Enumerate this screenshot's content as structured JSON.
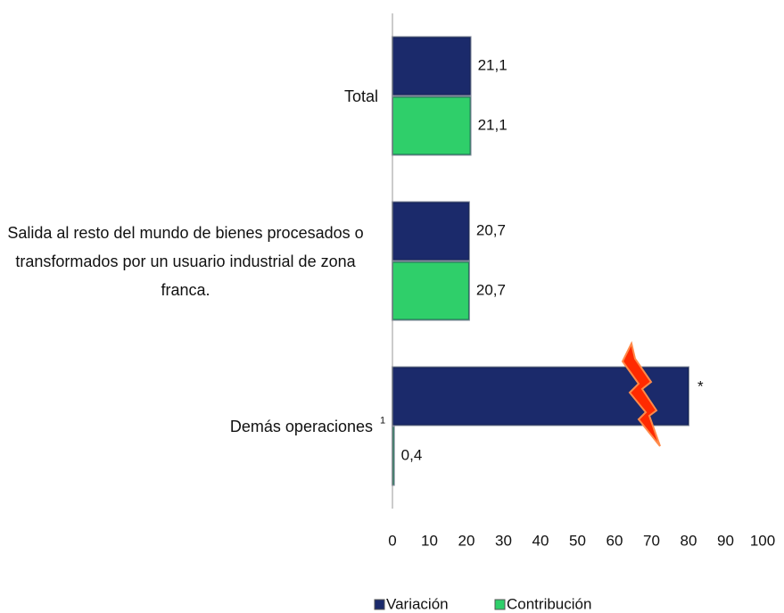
{
  "chart_data": {
    "type": "hbar",
    "categories": [
      "Total",
      "Salida al resto del mundo de bienes procesados o transformados por un usuario industrial de zona franca.",
      "Demás operaciones"
    ],
    "category_superscripts": [
      null,
      null,
      "1"
    ],
    "series": [
      {
        "name": "Variación",
        "color": "#1b2a6b",
        "values": [
          21.1,
          20.7,
          80
        ],
        "value_labels": [
          "21,1",
          "20,7",
          "*"
        ]
      },
      {
        "name": "Contribución",
        "color": "#2fcf6a",
        "values": [
          21.1,
          20.7,
          0.4
        ],
        "value_labels": [
          "21,1",
          "20,7",
          "0,4"
        ]
      }
    ],
    "xlim": [
      0,
      100
    ],
    "xticks": [
      0,
      10,
      20,
      30,
      40,
      50,
      60,
      70,
      80,
      90,
      100
    ],
    "grid": false,
    "legend": "bottom"
  }
}
